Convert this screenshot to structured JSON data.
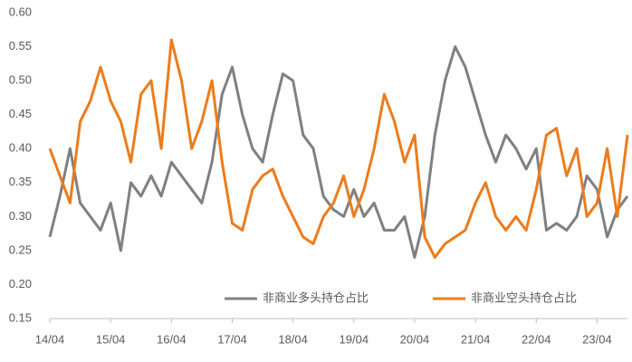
{
  "chart_data": {
    "type": "line",
    "categories": [
      "14/04",
      null,
      null,
      null,
      null,
      null,
      "15/04",
      null,
      null,
      null,
      null,
      null,
      "16/04",
      null,
      null,
      null,
      null,
      null,
      "17/04",
      null,
      null,
      null,
      null,
      null,
      "18/04",
      null,
      null,
      null,
      null,
      null,
      "19/04",
      null,
      null,
      null,
      null,
      null,
      "20/04",
      null,
      null,
      null,
      null,
      null,
      "21/04",
      null,
      null,
      null,
      null,
      null,
      "22/04",
      null,
      null,
      null,
      null,
      null,
      "23/04",
      null,
      null,
      null
    ],
    "series": [
      {
        "name": "非商业多头持仓占比",
        "color": "#808080",
        "values": [
          0.27,
          0.33,
          0.4,
          0.32,
          0.3,
          0.28,
          0.32,
          0.25,
          0.35,
          0.33,
          0.36,
          0.33,
          0.38,
          0.36,
          0.34,
          0.32,
          0.38,
          0.48,
          0.52,
          0.45,
          0.4,
          0.38,
          0.45,
          0.51,
          0.5,
          0.42,
          0.4,
          0.33,
          0.31,
          0.3,
          0.34,
          0.3,
          0.32,
          0.28,
          0.28,
          0.3,
          0.24,
          0.3,
          0.42,
          0.5,
          0.55,
          0.52,
          0.47,
          0.42,
          0.38,
          0.42,
          0.4,
          0.37,
          0.4,
          0.28,
          0.29,
          0.28,
          0.3,
          0.36,
          0.34,
          0.27,
          0.31,
          0.33
        ]
      },
      {
        "name": "非商业空头持仓占比",
        "color": "#ec7c1c",
        "values": [
          0.4,
          0.36,
          0.32,
          0.44,
          0.47,
          0.52,
          0.47,
          0.44,
          0.38,
          0.48,
          0.5,
          0.4,
          0.56,
          0.5,
          0.4,
          0.44,
          0.5,
          0.38,
          0.29,
          0.28,
          0.34,
          0.36,
          0.37,
          0.33,
          0.3,
          0.27,
          0.26,
          0.3,
          0.32,
          0.36,
          0.3,
          0.34,
          0.4,
          0.48,
          0.44,
          0.38,
          0.42,
          0.27,
          0.24,
          0.26,
          0.27,
          0.28,
          0.32,
          0.35,
          0.3,
          0.28,
          0.3,
          0.28,
          0.34,
          0.42,
          0.43,
          0.36,
          0.4,
          0.3,
          0.32,
          0.4,
          0.3,
          0.42
        ]
      }
    ],
    "ylim": [
      0.15,
      0.6
    ],
    "yticks": [
      0.15,
      {
        "value": 0.2,
        "label": "0.20"
      },
      0.25,
      {
        "value": 0.3,
        "label": "0.30"
      },
      0.35,
      {
        "value": 0.4,
        "label": "0.40"
      },
      0.45,
      {
        "value": 0.5,
        "label": "0.50"
      },
      0.55,
      {
        "value": 0.6,
        "label": "0.60"
      }
    ],
    "grid": false,
    "legend": "bottom-right"
  }
}
